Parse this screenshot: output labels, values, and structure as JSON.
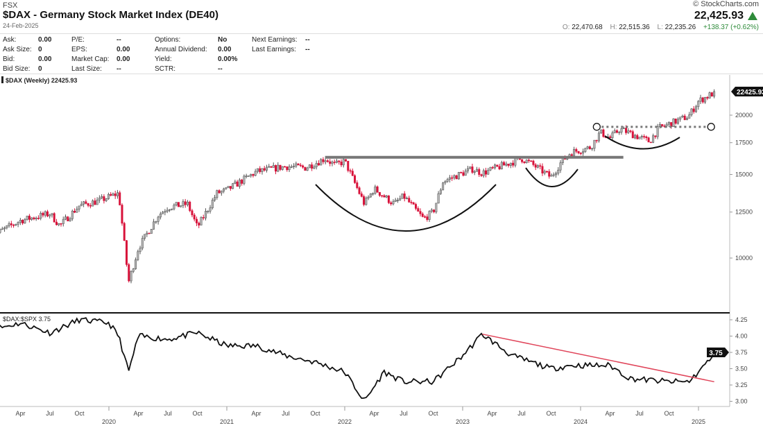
{
  "header": {
    "exchange": "FSX",
    "title": "$DAX - Germany Stock Market Index (DE40)",
    "date": "24-Feb-2025",
    "brand": "© StockCharts.com",
    "last": "22,425.93",
    "open_label": "O:",
    "open": "22,470.68",
    "high_label": "H:",
    "high": "22,515.36",
    "low_label": "L:",
    "low": "22,235.26",
    "change": "+138.37 (+0.62%)",
    "up_color": "#2e8b3a"
  },
  "info": {
    "col1": [
      {
        "k": "Ask:",
        "v": "0.00"
      },
      {
        "k": "Ask Size:",
        "v": "0"
      },
      {
        "k": "Bid:",
        "v": "0.00"
      },
      {
        "k": "Bid Size:",
        "v": "0"
      }
    ],
    "col2": [
      {
        "k": "P/E:",
        "v": "--"
      },
      {
        "k": "EPS:",
        "v": "0.00"
      },
      {
        "k": "Market Cap:",
        "v": "0.00"
      },
      {
        "k": "Last Size:",
        "v": "--"
      }
    ],
    "col3": [
      {
        "k": "Options:",
        "v": "No"
      },
      {
        "k": "Annual Dividend:",
        "v": "0.00"
      },
      {
        "k": "Yield:",
        "v": "0.00%"
      },
      {
        "k": "SCTR:",
        "v": "--"
      }
    ],
    "col4": [
      {
        "k": "Next Earnings:",
        "v": "--"
      },
      {
        "k": "Last Earnings:",
        "v": "--"
      }
    ]
  },
  "chart_data": [
    {
      "type": "candlestick",
      "legend": "$DAX (Weekly) 22425.93",
      "last_value_label": "22425.93",
      "scale": "log",
      "y_ticks": [
        "10000",
        "12500",
        "15000",
        "17500",
        "20000"
      ],
      "ylim": [
        8000,
        23500
      ],
      "up_color": "#555555",
      "down_color": "#d8123a",
      "closes": [
        [
          "2019-01",
          11100
        ],
        [
          "2019-04",
          12000
        ],
        [
          "2019-07",
          12400
        ],
        [
          "2019-08",
          11700
        ],
        [
          "2019-10",
          12900
        ],
        [
          "2019-12",
          13200
        ],
        [
          "2020-02",
          13700
        ],
        [
          "2020-03",
          8900
        ],
        [
          "2020-04",
          10500
        ],
        [
          "2020-06",
          12300
        ],
        [
          "2020-07",
          12800
        ],
        [
          "2020-09",
          13000
        ],
        [
          "2020-10",
          11600
        ],
        [
          "2020-12",
          13700
        ],
        [
          "2021-01",
          13900
        ],
        [
          "2021-04",
          15200
        ],
        [
          "2021-07",
          15600
        ],
        [
          "2021-09",
          15500
        ],
        [
          "2021-11",
          16200
        ],
        [
          "2021-12",
          15700
        ],
        [
          "2022-01",
          16000
        ],
        [
          "2022-03",
          13000
        ],
        [
          "2022-04",
          14000
        ],
        [
          "2022-06",
          13000
        ],
        [
          "2022-07",
          13500
        ],
        [
          "2022-09",
          12100
        ],
        [
          "2022-10",
          12500
        ],
        [
          "2022-11",
          14500
        ],
        [
          "2023-01",
          15100
        ],
        [
          "2023-02",
          15400
        ],
        [
          "2023-03",
          15100
        ],
        [
          "2023-07",
          16200
        ],
        [
          "2023-08",
          15800
        ],
        [
          "2023-10",
          14800
        ],
        [
          "2023-11",
          15900
        ],
        [
          "2023-12",
          16700
        ],
        [
          "2024-02",
          17100
        ],
        [
          "2024-03",
          18400
        ],
        [
          "2024-04",
          17900
        ],
        [
          "2024-05",
          18700
        ],
        [
          "2024-08",
          17600
        ],
        [
          "2024-09",
          18800
        ],
        [
          "2024-12",
          19900
        ],
        [
          "2025-01",
          21400
        ],
        [
          "2025-02",
          22425.93
        ]
      ],
      "annotations": {
        "resistance_level": 16300,
        "resistance_from": "2021-11",
        "resistance_to": "2024-05",
        "breakout_level": 18900,
        "breakout_from": "2024-03",
        "breakout_to": "2025-02"
      }
    },
    {
      "type": "line",
      "legend": "$DAX:$SPX 3.75",
      "last_value_label": "3.75",
      "y_ticks": [
        "3.00",
        "3.25",
        "3.50",
        "3.75",
        "4.00",
        "4.25"
      ],
      "ylim": [
        2.95,
        4.35
      ],
      "points": [
        [
          "2019-01",
          4.1
        ],
        [
          "2019-04",
          4.2
        ],
        [
          "2019-07",
          4.05
        ],
        [
          "2019-10",
          4.25
        ],
        [
          "2020-01",
          4.2
        ],
        [
          "2020-02",
          4.0
        ],
        [
          "2020-03",
          3.45
        ],
        [
          "2020-04",
          4.0
        ],
        [
          "2020-07",
          3.95
        ],
        [
          "2020-10",
          4.05
        ],
        [
          "2021-01",
          3.85
        ],
        [
          "2021-04",
          3.85
        ],
        [
          "2021-07",
          3.7
        ],
        [
          "2021-10",
          3.6
        ],
        [
          "2022-01",
          3.45
        ],
        [
          "2022-03",
          3.0
        ],
        [
          "2022-05",
          3.45
        ],
        [
          "2022-07",
          3.3
        ],
        [
          "2022-10",
          3.3
        ],
        [
          "2023-01",
          3.7
        ],
        [
          "2023-03",
          4.03
        ],
        [
          "2023-06",
          3.7
        ],
        [
          "2023-10",
          3.5
        ],
        [
          "2023-12",
          3.55
        ],
        [
          "2024-04",
          3.55
        ],
        [
          "2024-06",
          3.35
        ],
        [
          "2024-10",
          3.3
        ],
        [
          "2024-12",
          3.3
        ],
        [
          "2025-01",
          3.45
        ],
        [
          "2025-02",
          3.75
        ]
      ],
      "trendline": {
        "from": [
          "2023-03",
          4.03
        ],
        "to": [
          "2025-02",
          3.3
        ],
        "color": "#e0455a"
      }
    }
  ],
  "x_axis": {
    "months": [
      [
        "2019-04",
        "Apr"
      ],
      [
        "2019-07",
        "Jul"
      ],
      [
        "2019-10",
        "Oct"
      ],
      [
        "2020-04",
        "Apr"
      ],
      [
        "2020-07",
        "Jul"
      ],
      [
        "2020-10",
        "Oct"
      ],
      [
        "2021-04",
        "Apr"
      ],
      [
        "2021-07",
        "Jul"
      ],
      [
        "2021-10",
        "Oct"
      ],
      [
        "2022-04",
        "Apr"
      ],
      [
        "2022-07",
        "Jul"
      ],
      [
        "2022-10",
        "Oct"
      ],
      [
        "2023-04",
        "Apr"
      ],
      [
        "2023-07",
        "Jul"
      ],
      [
        "2023-10",
        "Oct"
      ],
      [
        "2024-04",
        "Apr"
      ],
      [
        "2024-07",
        "Jul"
      ],
      [
        "2024-10",
        "Oct"
      ]
    ],
    "years": [
      [
        "2020-01",
        "2020"
      ],
      [
        "2021-01",
        "2021"
      ],
      [
        "2022-01",
        "2022"
      ],
      [
        "2023-01",
        "2023"
      ],
      [
        "2024-01",
        "2024"
      ],
      [
        "2025-01",
        "2025"
      ]
    ]
  }
}
